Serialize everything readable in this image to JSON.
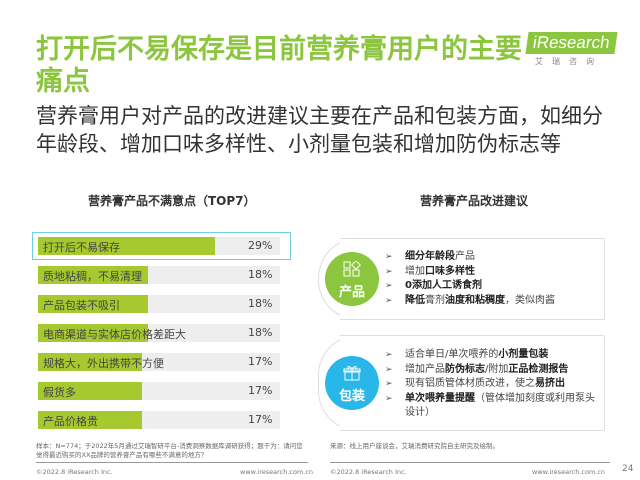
{
  "title": "打开后不易保存是目前营养膏用户的主要痛点",
  "subtitle": "营养膏用户对产品的改进建议主要在产品和包装方面，如细分年龄段、增加口味多样性、小剂量包装和增加防伪标志等",
  "logo": {
    "brand": "iResearch",
    "cn": "艾瑞咨询"
  },
  "left": {
    "heading": "营养膏产品不满意点（TOP7）",
    "rows": [
      {
        "label": "打开后不易保存",
        "value": "29%",
        "pct": 29
      },
      {
        "label": "质地粘稠，不易清理",
        "value": "18%",
        "pct": 18
      },
      {
        "label": "产品包装不吸引",
        "value": "18%",
        "pct": 18
      },
      {
        "label": "电商渠道与实体店价格差距大",
        "value": "18%",
        "pct": 18
      },
      {
        "label": "规格大，外出携带不方便",
        "value": "17%",
        "pct": 17
      },
      {
        "label": "假货多",
        "value": "17%",
        "pct": 17
      },
      {
        "label": "产品价格贵",
        "value": "17%",
        "pct": 17
      }
    ]
  },
  "right": {
    "heading": "营养膏产品改进建议",
    "cards": [
      {
        "label": "产品",
        "icon": "apps-icon",
        "color": "#8cc63f",
        "items": [
          [
            [
              "细分年龄段",
              1
            ],
            [
              "产品",
              0
            ]
          ],
          [
            [
              "增加",
              0
            ],
            [
              "口味多样性",
              1
            ]
          ],
          [
            [
              "0添加人工诱食剂",
              1
            ]
          ],
          [
            [
              "降低",
              1
            ],
            [
              "膏剂",
              0
            ],
            [
              "油度和粘稠度",
              1
            ],
            [
              "，类似肉酱",
              0
            ]
          ]
        ]
      },
      {
        "label": "包装",
        "icon": "gift-icon",
        "color": "#29b6e8",
        "items": [
          [
            [
              "适合单日/单次喂养的",
              0
            ],
            [
              "小剂量包装",
              1
            ]
          ],
          [
            [
              "增加产品",
              0
            ],
            [
              "防伪标志",
              1
            ],
            [
              "/附加",
              0
            ],
            [
              "正品检测报告",
              1
            ]
          ],
          [
            [
              "现有铝质管体材质改进，使之",
              0
            ],
            [
              "易挤出",
              1
            ]
          ],
          [
            [
              "单次喂养量提醒",
              1
            ],
            [
              "（管体增加刻度或利用泵头设计）",
              0
            ]
          ]
        ]
      }
    ]
  },
  "notes": {
    "left": "样本：N=774；于2022年5月通过艾瑞智研平台-消费洞察数据库调研获得；题干为：请问您觉得最近购买的XX品牌的营养膏产品有哪些不满意的地方？",
    "right": "来源：线上用户座谈会，艾瑞消费研究院自主研究及绘制。"
  },
  "footer": {
    "copyright": "©2022.8 iResearch Inc.",
    "url": "www.iresearch.com.cn",
    "page": "24"
  }
}
